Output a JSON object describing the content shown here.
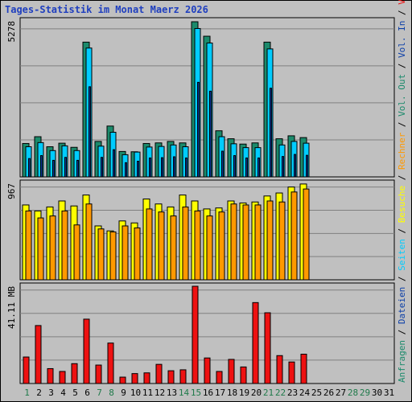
{
  "chart_data": {
    "title": "Tages-Statistik im Monat Maerz 2026",
    "type": "bar",
    "days": [
      "1",
      "2",
      "3",
      "4",
      "5",
      "6",
      "7",
      "8",
      "9",
      "10",
      "11",
      "12",
      "13",
      "14",
      "15",
      "16",
      "17",
      "18",
      "19",
      "20",
      "21",
      "22",
      "23",
      "24",
      "25",
      "26",
      "27",
      "28",
      "29",
      "30",
      "31"
    ],
    "weekend_days": [
      1,
      7,
      8,
      14,
      15,
      21,
      22,
      28,
      29
    ],
    "top_panel": {
      "y_label": "5278",
      "ylim": [
        0,
        5278
      ],
      "series": [
        {
          "name": "Anfragen",
          "color": "#1b8a6b",
          "values": [
            1130,
            1360,
            1020,
            1140,
            1000,
            4560,
            1200,
            1720,
            860,
            850,
            1130,
            1150,
            1200,
            1150,
            5250,
            4760,
            1560,
            1290,
            1110,
            1150,
            4560,
            1290,
            1390,
            1330,
            null,
            null,
            null,
            null,
            null,
            null,
            null
          ]
        },
        {
          "name": "Seiten",
          "color": "#00ccff",
          "values": [
            1020,
            1160,
            890,
            1050,
            890,
            4360,
            1040,
            1510,
            750,
            840,
            1010,
            1030,
            1080,
            1020,
            5020,
            4530,
            1360,
            1120,
            990,
            990,
            4330,
            1080,
            1200,
            1140,
            null,
            null,
            null,
            null,
            null,
            null,
            null
          ]
        },
        {
          "name": "Dateien",
          "color": "#0a3ea8",
          "values": [
            620,
            720,
            560,
            660,
            560,
            3050,
            660,
            920,
            480,
            530,
            640,
            650,
            680,
            640,
            3200,
            2900,
            870,
            720,
            640,
            640,
            3000,
            690,
            760,
            730,
            null,
            null,
            null,
            null,
            null,
            null,
            null
          ]
        }
      ]
    },
    "middle_panel": {
      "y_label": "967",
      "ylim": [
        0,
        967
      ],
      "series": [
        {
          "name": "Besuche",
          "color": "#ffff00",
          "values": [
            750,
            690,
            730,
            790,
            740,
            850,
            540,
            490,
            590,
            570,
            810,
            760,
            730,
            850,
            790,
            710,
            720,
            790,
            770,
            780,
            840,
            870,
            930,
            960,
            null,
            null,
            null,
            null,
            null,
            null,
            null
          ]
        },
        {
          "name": "Rechner",
          "color": "#ff9900",
          "values": [
            690,
            620,
            640,
            690,
            550,
            760,
            510,
            480,
            540,
            520,
            710,
            680,
            640,
            730,
            690,
            640,
            680,
            760,
            750,
            750,
            790,
            780,
            880,
            910,
            null,
            null,
            null,
            null,
            null,
            null,
            null
          ]
        }
      ]
    },
    "bottom_panel": {
      "y_label": "41.11 MB",
      "ylim": [
        0,
        41.11
      ],
      "series": [
        {
          "name": "Volumen",
          "color": "#ee1111",
          "values": [
            11.2,
            24.5,
            6.3,
            5.1,
            8.4,
            27.2,
            7.8,
            17.1,
            2.7,
            4.2,
            4.5,
            8.1,
            5.4,
            5.8,
            41.1,
            10.8,
            5.1,
            10.2,
            7.0,
            34.2,
            29.9,
            11.8,
            9.1,
            12.4,
            null,
            null,
            null,
            null,
            null,
            null,
            null
          ]
        }
      ]
    },
    "right_legend": [
      {
        "text": "Anfragen",
        "color": "#1b8a6b"
      },
      {
        "text": "Dateien",
        "color": "#0a3ea8"
      },
      {
        "text": "Seiten",
        "color": "#00ccff"
      },
      {
        "text": "Besuche",
        "color": "#ffff00"
      },
      {
        "text": "Rechner",
        "color": "#ff9900"
      },
      {
        "text": "Vol. Out",
        "color": "#1b8a6b"
      },
      {
        "text": "Vol. In",
        "color": "#0a3ea8"
      },
      {
        "text": "Volumen",
        "color": "#ee1111"
      }
    ],
    "legend_separator": " / ",
    "colors": {
      "page_bg": "#c0c0c0",
      "plot_bg": "#c0c0c0",
      "grid": "#808080",
      "title": "#1f3fbf",
      "day_label": "#000000",
      "weekend_label": "#1f7a4a"
    }
  }
}
